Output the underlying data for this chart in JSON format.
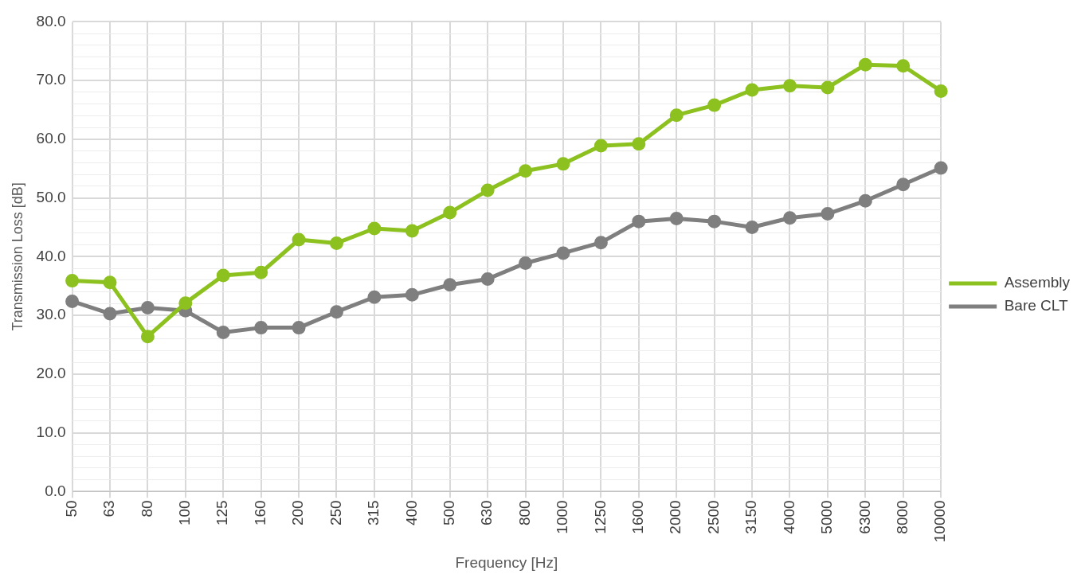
{
  "chart_data": {
    "type": "line",
    "xlabel": "Frequency [Hz]",
    "ylabel": "Transmission Loss [dB]",
    "categories": [
      "50",
      "63",
      "80",
      "100",
      "125",
      "160",
      "200",
      "250",
      "315",
      "400",
      "500",
      "630",
      "800",
      "1000",
      "1250",
      "1600",
      "2000",
      "2500",
      "3150",
      "4000",
      "5000",
      "6300",
      "8000",
      "10000"
    ],
    "series": [
      {
        "name": "Assembly",
        "color": "#8cc11f",
        "values": [
          35.9,
          35.6,
          26.4,
          32.1,
          36.8,
          37.3,
          42.9,
          42.3,
          44.8,
          44.4,
          47.5,
          51.3,
          54.6,
          55.8,
          58.9,
          59.2,
          64.1,
          65.8,
          68.4,
          69.1,
          68.8,
          72.7,
          72.5,
          68.2
        ]
      },
      {
        "name": "Bare CLT",
        "color": "#7f7f7f",
        "values": [
          32.4,
          30.3,
          31.3,
          30.8,
          27.1,
          27.9,
          27.9,
          30.6,
          33.1,
          33.5,
          35.2,
          36.2,
          38.9,
          40.6,
          42.4,
          46.0,
          46.5,
          46.0,
          45.0,
          46.6,
          47.3,
          49.5,
          52.3,
          55.1
        ]
      }
    ],
    "ylim": [
      0,
      80
    ],
    "yticks": [
      {
        "value": 0,
        "label": "0.0"
      },
      {
        "value": 2,
        "label": null
      },
      {
        "value": 4,
        "label": null
      },
      {
        "value": 6,
        "label": null
      },
      {
        "value": 8,
        "label": null
      },
      {
        "value": 10,
        "label": "10.0"
      },
      {
        "value": 12,
        "label": null
      },
      {
        "value": 14,
        "label": null
      },
      {
        "value": 16,
        "label": null
      },
      {
        "value": 18,
        "label": null
      },
      {
        "value": 20,
        "label": "20.0"
      },
      {
        "value": 22,
        "label": null
      },
      {
        "value": 24,
        "label": null
      },
      {
        "value": 26,
        "label": null
      },
      {
        "value": 28,
        "label": null
      },
      {
        "value": 30,
        "label": "30.0"
      },
      {
        "value": 32,
        "label": null
      },
      {
        "value": 34,
        "label": null
      },
      {
        "value": 36,
        "label": null
      },
      {
        "value": 38,
        "label": null
      },
      {
        "value": 40,
        "label": "40.0"
      },
      {
        "value": 42,
        "label": null
      },
      {
        "value": 44,
        "label": null
      },
      {
        "value": 46,
        "label": null
      },
      {
        "value": 48,
        "label": null
      },
      {
        "value": 50,
        "label": "50.0"
      },
      {
        "value": 52,
        "label": null
      },
      {
        "value": 54,
        "label": null
      },
      {
        "value": 56,
        "label": null
      },
      {
        "value": 58,
        "label": null
      },
      {
        "value": 60,
        "label": "60.0"
      },
      {
        "value": 62,
        "label": null
      },
      {
        "value": 64,
        "label": null
      },
      {
        "value": 66,
        "label": null
      },
      {
        "value": 68,
        "label": null
      },
      {
        "value": 70,
        "label": "70.0"
      },
      {
        "value": 72,
        "label": null
      },
      {
        "value": 74,
        "label": null
      },
      {
        "value": 76,
        "label": null
      },
      {
        "value": 78,
        "label": null
      },
      {
        "value": 80,
        "label": "80.0"
      }
    ],
    "grid": true,
    "legend": "right",
    "marker": "circle",
    "line_style": "solid"
  }
}
